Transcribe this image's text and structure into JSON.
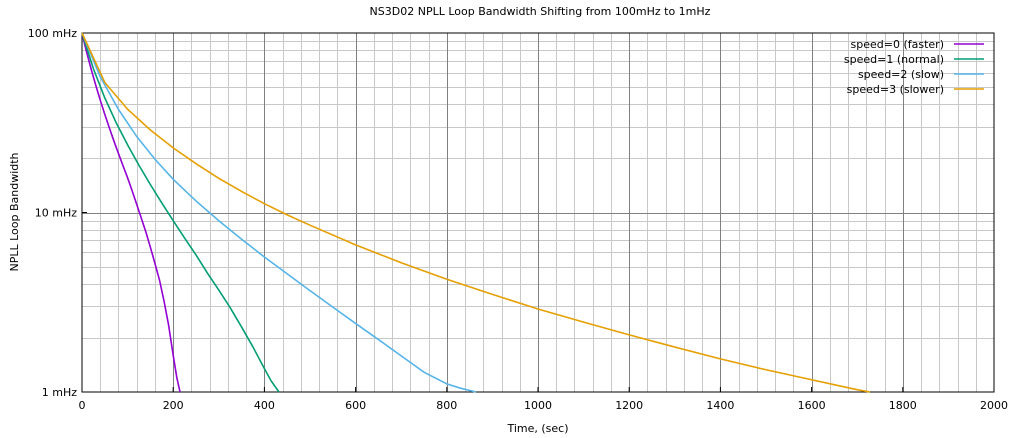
{
  "chart_data": {
    "type": "line",
    "title": "NS3D02 NPLL Loop Bandwidth Shifting from 100mHz to 1mHz",
    "xlabel": "Time, (sec)",
    "ylabel": "NPLL Loop Bandwidth",
    "xlim": [
      0,
      2000
    ],
    "ylim": [
      1,
      100
    ],
    "yscale": "log",
    "grid": true,
    "legend_position": "top-right",
    "x_ticks": [
      0,
      200,
      400,
      600,
      800,
      1000,
      1200,
      1400,
      1600,
      1800,
      2000
    ],
    "x_tick_labels": [
      "0",
      "200",
      "400",
      "600",
      "800",
      "1000",
      "1200",
      "1400",
      "1600",
      "1800",
      "2000"
    ],
    "y_ticks": [
      1,
      10,
      100
    ],
    "y_tick_labels": [
      "1 mHz",
      "10 mHz",
      "100 mHz"
    ],
    "series": [
      {
        "name": "speed=0 (faster)",
        "color": "#9400d3",
        "x": [
          0,
          10,
          20,
          30,
          40,
          50,
          60,
          70,
          80,
          90,
          100,
          110,
          120,
          130,
          140,
          150,
          160,
          170,
          180,
          190,
          200,
          208,
          215
        ],
        "y": [
          100,
          78.5,
          63.0,
          51.3,
          42.3,
          35.2,
          29.6,
          25.0,
          21.3,
          18.2,
          15.6,
          13.2,
          11.1,
          9.3,
          7.8,
          6.4,
          5.2,
          4.2,
          3.2,
          2.35,
          1.6,
          1.2,
          1.0
        ]
      },
      {
        "name": "speed=1 (normal)",
        "color": "#009e73",
        "x": [
          0,
          25,
          50,
          75,
          100,
          125,
          150,
          175,
          200,
          225,
          250,
          275,
          300,
          325,
          350,
          375,
          400,
          415,
          432
        ],
        "y": [
          100,
          63.2,
          43.5,
          31.6,
          23.8,
          18.3,
          14.3,
          11.3,
          9.0,
          7.2,
          5.8,
          4.6,
          3.7,
          2.95,
          2.3,
          1.78,
          1.35,
          1.15,
          1.0
        ]
      },
      {
        "name": "speed=2 (slow)",
        "color": "#56b4e9",
        "x": [
          0,
          40,
          80,
          120,
          160,
          200,
          250,
          300,
          350,
          400,
          450,
          500,
          550,
          600,
          650,
          700,
          750,
          800,
          830,
          864
        ],
        "y": [
          100,
          57.0,
          37.5,
          26.5,
          19.8,
          15.3,
          11.6,
          9.0,
          7.1,
          5.65,
          4.55,
          3.67,
          2.97,
          2.41,
          1.96,
          1.59,
          1.29,
          1.11,
          1.05,
          1.0
        ]
      },
      {
        "name": "speed=3 (slower)",
        "color": "#e69f00",
        "x": [
          0,
          50,
          100,
          150,
          200,
          250,
          300,
          350,
          400,
          450,
          500,
          600,
          700,
          800,
          900,
          1000,
          1100,
          1200,
          1300,
          1400,
          1500,
          1600,
          1700,
          1728
        ],
        "y": [
          100,
          53.0,
          37.6,
          28.8,
          22.9,
          18.7,
          15.5,
          13.1,
          11.2,
          9.7,
          8.5,
          6.6,
          5.25,
          4.25,
          3.5,
          2.9,
          2.45,
          2.08,
          1.78,
          1.53,
          1.33,
          1.17,
          1.03,
          1.0
        ]
      }
    ]
  }
}
